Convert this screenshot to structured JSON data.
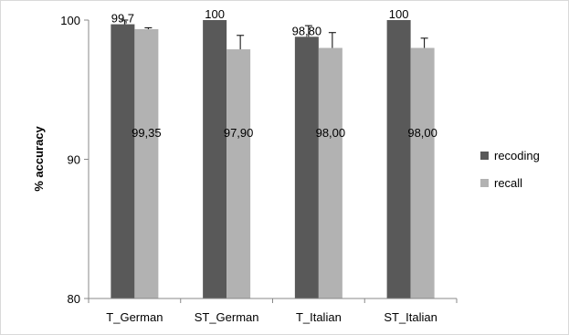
{
  "chart_data": {
    "type": "bar",
    "ylabel": "% accuracy",
    "ylim": [
      80,
      100
    ],
    "yticks": [
      "80",
      "90",
      "100"
    ],
    "grid": false,
    "legend_position": "right",
    "categories": [
      "T_German",
      "ST_German",
      "T_Italian",
      "ST_Italian"
    ],
    "series": [
      {
        "name": "recoding",
        "color": "#595959",
        "values": [
          99.7,
          100,
          98.8,
          100
        ],
        "labels": [
          "99,7",
          "100",
          "98,80",
          "100"
        ],
        "error": [
          0.3,
          0,
          0.8,
          0
        ]
      },
      {
        "name": "recall",
        "color": "#b2b2b2",
        "values": [
          99.35,
          97.9,
          98.0,
          98.0
        ],
        "labels": [
          "99,35",
          "97,90",
          "98,00",
          "98,00"
        ],
        "error": [
          0.1,
          1.0,
          1.1,
          0.7
        ]
      }
    ]
  }
}
